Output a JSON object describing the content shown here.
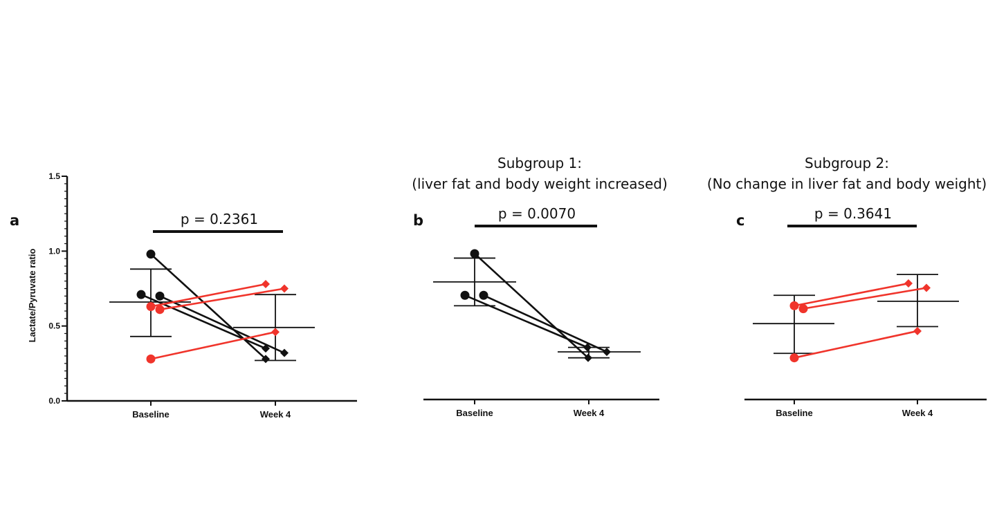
{
  "colors": {
    "decreased": "#111111",
    "unchanged": "#f0342b",
    "axis": "#111111"
  },
  "ylabel": "Lactate/Pyruvate ratio",
  "chart_data": [
    {
      "type": "line",
      "panel": "a",
      "title_lines": [],
      "p_value": "p = 0.2361",
      "categories": [
        "Baseline",
        "Week 4"
      ],
      "ylim": [
        0,
        1.5
      ],
      "yticks": [
        0.0,
        0.5,
        1.0,
        1.5
      ],
      "ytick_labels": [
        "0.0",
        "0.5",
        "1.0",
        "1.5"
      ],
      "show_y_axis": true,
      "series": [
        {
          "group": "decreased",
          "values": [
            0.98,
            0.28
          ]
        },
        {
          "group": "decreased",
          "values": [
            0.71,
            0.35
          ]
        },
        {
          "group": "decreased",
          "values": [
            0.7,
            0.32
          ]
        },
        {
          "group": "unchanged",
          "values": [
            0.63,
            0.78
          ]
        },
        {
          "group": "unchanged",
          "values": [
            0.61,
            0.75
          ]
        },
        {
          "group": "unchanged",
          "values": [
            0.28,
            0.46
          ]
        }
      ],
      "summary": [
        {
          "mean": 0.66,
          "lower": 0.43,
          "upper": 0.88
        },
        {
          "mean": 0.49,
          "lower": 0.27,
          "upper": 0.71
        }
      ]
    },
    {
      "type": "line",
      "panel": "b",
      "title_lines": [
        "Subgroup 1:",
        "(liver fat and body weight increased)"
      ],
      "p_value": "p = 0.0070",
      "categories": [
        "Baseline",
        "Week 4"
      ],
      "ylim": [
        0,
        1.5
      ],
      "show_y_axis": false,
      "series": [
        {
          "group": "decreased",
          "values": [
            0.98,
            0.28
          ]
        },
        {
          "group": "decreased",
          "values": [
            0.7,
            0.35
          ]
        },
        {
          "group": "decreased",
          "values": [
            0.7,
            0.32
          ]
        }
      ],
      "summary": [
        {
          "mean": 0.79,
          "lower": 0.63,
          "upper": 0.95
        },
        {
          "mean": 0.32,
          "lower": 0.28,
          "upper": 0.35
        }
      ]
    },
    {
      "type": "line",
      "panel": "c",
      "title_lines": [
        "Subgroup 2:",
        "(No change in liver fat and body weight)"
      ],
      "p_value": "p = 0.3641",
      "categories": [
        "Baseline",
        "Week 4"
      ],
      "ylim": [
        0,
        1.5
      ],
      "show_y_axis": false,
      "series": [
        {
          "group": "unchanged",
          "values": [
            0.63,
            0.78
          ]
        },
        {
          "group": "unchanged",
          "values": [
            0.61,
            0.75
          ]
        },
        {
          "group": "unchanged",
          "values": [
            0.28,
            0.46
          ]
        }
      ],
      "summary": [
        {
          "mean": 0.51,
          "lower": 0.31,
          "upper": 0.7
        },
        {
          "mean": 0.66,
          "lower": 0.49,
          "upper": 0.84
        }
      ]
    }
  ]
}
